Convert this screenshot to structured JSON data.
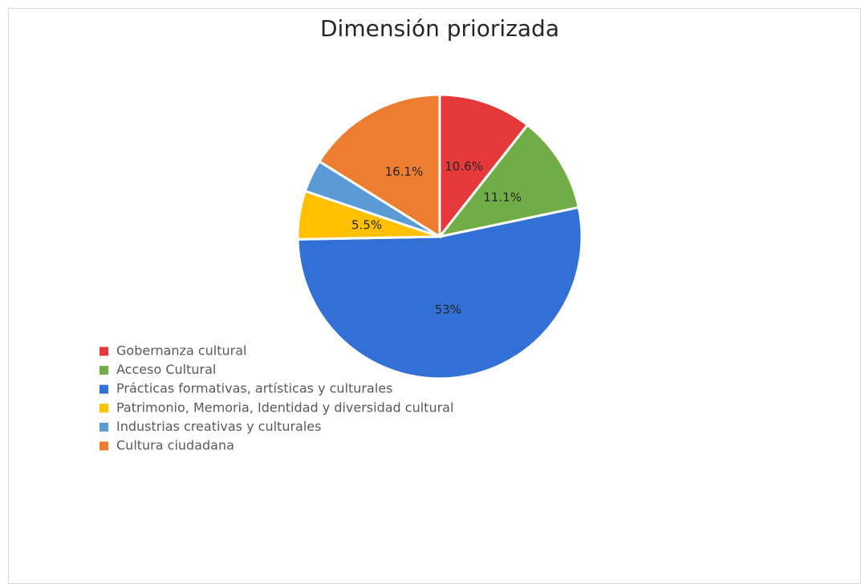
{
  "chart_data": {
    "type": "pie",
    "title": "Dimensión priorizada",
    "categories": [
      "Gobernanza cultural",
      "Acceso Cultural",
      "Prácticas formativas, artísticas y culturales",
      "Patrimonio, Memoria, Identidad y diversidad cultural",
      "Industrias creativas y culturales",
      "Cultura ciudadana"
    ],
    "values": [
      10.6,
      11.1,
      53,
      5.5,
      3.7,
      16.1
    ],
    "value_labels": [
      "10.6%",
      "11.1%",
      "53%",
      "5.5%",
      null,
      "16.1%"
    ],
    "colors": [
      "#e5383b",
      "#70ad47",
      "#3370d6",
      "#ffc000",
      "#5b9bd5",
      "#ed7d31"
    ],
    "legend": "left"
  }
}
